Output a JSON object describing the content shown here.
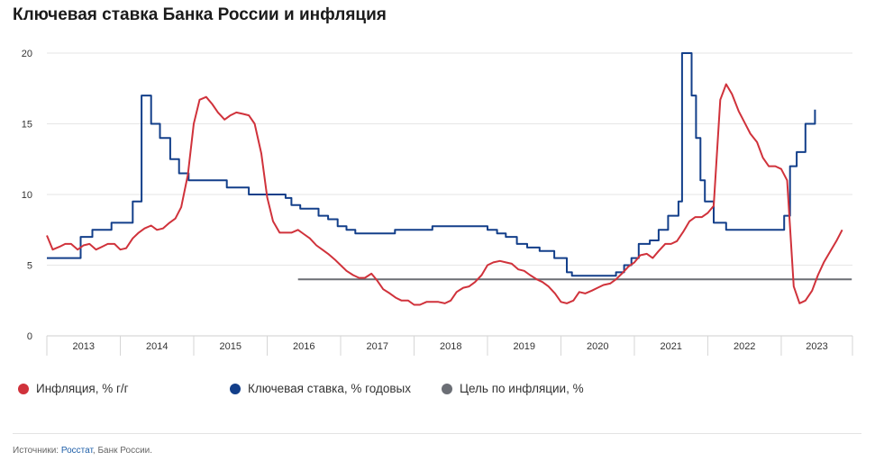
{
  "title": "Ключевая ставка Банка России и инфляция",
  "chart_data": {
    "type": "line",
    "title": "Ключевая ставка Банка России и инфляция",
    "xlabel": "",
    "ylabel": "",
    "xlim": [
      2013.0,
      2023.97
    ],
    "ylim": [
      0,
      20
    ],
    "y_ticks": [
      0,
      5,
      10,
      15,
      20
    ],
    "x_tick_labels": [
      "2013",
      "2014",
      "2015",
      "2016",
      "2017",
      "2018",
      "2019",
      "2020",
      "2021",
      "2022",
      "2023"
    ],
    "grid": true,
    "legend_position": "bottom",
    "series": [
      {
        "name": "Инфляция, % г/г",
        "color": "#d0323b",
        "style": "line",
        "points": [
          [
            2013.0,
            7.1
          ],
          [
            2013.08,
            6.1
          ],
          [
            2013.17,
            6.3
          ],
          [
            2013.25,
            6.5
          ],
          [
            2013.33,
            6.5
          ],
          [
            2013.42,
            6.1
          ],
          [
            2013.5,
            6.4
          ],
          [
            2013.58,
            6.5
          ],
          [
            2013.67,
            6.1
          ],
          [
            2013.75,
            6.3
          ],
          [
            2013.83,
            6.5
          ],
          [
            2013.92,
            6.5
          ],
          [
            2014.0,
            6.1
          ],
          [
            2014.08,
            6.2
          ],
          [
            2014.17,
            6.9
          ],
          [
            2014.25,
            7.3
          ],
          [
            2014.33,
            7.6
          ],
          [
            2014.42,
            7.8
          ],
          [
            2014.5,
            7.5
          ],
          [
            2014.58,
            7.6
          ],
          [
            2014.67,
            8.0
          ],
          [
            2014.75,
            8.3
          ],
          [
            2014.83,
            9.1
          ],
          [
            2014.92,
            11.4
          ],
          [
            2015.0,
            15.0
          ],
          [
            2015.08,
            16.7
          ],
          [
            2015.17,
            16.9
          ],
          [
            2015.25,
            16.4
          ],
          [
            2015.33,
            15.8
          ],
          [
            2015.42,
            15.3
          ],
          [
            2015.5,
            15.6
          ],
          [
            2015.58,
            15.8
          ],
          [
            2015.67,
            15.7
          ],
          [
            2015.75,
            15.6
          ],
          [
            2015.83,
            15.0
          ],
          [
            2015.92,
            12.9
          ],
          [
            2016.0,
            9.8
          ],
          [
            2016.08,
            8.1
          ],
          [
            2016.17,
            7.3
          ],
          [
            2016.25,
            7.3
          ],
          [
            2016.33,
            7.3
          ],
          [
            2016.42,
            7.5
          ],
          [
            2016.5,
            7.2
          ],
          [
            2016.58,
            6.9
          ],
          [
            2016.67,
            6.4
          ],
          [
            2016.75,
            6.1
          ],
          [
            2016.83,
            5.8
          ],
          [
            2016.92,
            5.4
          ],
          [
            2017.0,
            5.0
          ],
          [
            2017.08,
            4.6
          ],
          [
            2017.17,
            4.3
          ],
          [
            2017.25,
            4.1
          ],
          [
            2017.33,
            4.1
          ],
          [
            2017.42,
            4.4
          ],
          [
            2017.5,
            3.9
          ],
          [
            2017.58,
            3.3
          ],
          [
            2017.67,
            3.0
          ],
          [
            2017.75,
            2.7
          ],
          [
            2017.83,
            2.5
          ],
          [
            2017.92,
            2.5
          ],
          [
            2018.0,
            2.2
          ],
          [
            2018.08,
            2.2
          ],
          [
            2018.17,
            2.4
          ],
          [
            2018.25,
            2.4
          ],
          [
            2018.33,
            2.4
          ],
          [
            2018.42,
            2.3
          ],
          [
            2018.5,
            2.5
          ],
          [
            2018.58,
            3.1
          ],
          [
            2018.67,
            3.4
          ],
          [
            2018.75,
            3.5
          ],
          [
            2018.83,
            3.8
          ],
          [
            2018.92,
            4.3
          ],
          [
            2019.0,
            5.0
          ],
          [
            2019.08,
            5.2
          ],
          [
            2019.17,
            5.3
          ],
          [
            2019.25,
            5.2
          ],
          [
            2019.33,
            5.1
          ],
          [
            2019.42,
            4.7
          ],
          [
            2019.5,
            4.6
          ],
          [
            2019.58,
            4.3
          ],
          [
            2019.67,
            4.0
          ],
          [
            2019.75,
            3.8
          ],
          [
            2019.83,
            3.5
          ],
          [
            2019.92,
            3.0
          ],
          [
            2020.0,
            2.4
          ],
          [
            2020.08,
            2.3
          ],
          [
            2020.17,
            2.5
          ],
          [
            2020.25,
            3.1
          ],
          [
            2020.33,
            3.0
          ],
          [
            2020.42,
            3.2
          ],
          [
            2020.5,
            3.4
          ],
          [
            2020.58,
            3.6
          ],
          [
            2020.67,
            3.7
          ],
          [
            2020.75,
            4.0
          ],
          [
            2020.83,
            4.4
          ],
          [
            2020.92,
            4.9
          ],
          [
            2021.0,
            5.2
          ],
          [
            2021.08,
            5.7
          ],
          [
            2021.17,
            5.8
          ],
          [
            2021.25,
            5.5
          ],
          [
            2021.33,
            6.0
          ],
          [
            2021.42,
            6.5
          ],
          [
            2021.5,
            6.5
          ],
          [
            2021.58,
            6.7
          ],
          [
            2021.67,
            7.4
          ],
          [
            2021.75,
            8.1
          ],
          [
            2021.83,
            8.4
          ],
          [
            2021.92,
            8.4
          ],
          [
            2022.0,
            8.7
          ],
          [
            2022.08,
            9.2
          ],
          [
            2022.17,
            16.7
          ],
          [
            2022.25,
            17.8
          ],
          [
            2022.33,
            17.1
          ],
          [
            2022.42,
            15.9
          ],
          [
            2022.5,
            15.1
          ],
          [
            2022.58,
            14.3
          ],
          [
            2022.67,
            13.7
          ],
          [
            2022.75,
            12.6
          ],
          [
            2022.83,
            12.0
          ],
          [
            2022.92,
            12.0
          ],
          [
            2023.0,
            11.8
          ],
          [
            2023.08,
            11.0
          ],
          [
            2023.17,
            3.5
          ],
          [
            2023.25,
            2.3
          ],
          [
            2023.33,
            2.5
          ],
          [
            2023.42,
            3.2
          ],
          [
            2023.5,
            4.3
          ],
          [
            2023.58,
            5.2
          ],
          [
            2023.67,
            6.0
          ],
          [
            2023.75,
            6.7
          ],
          [
            2023.83,
            7.5
          ]
        ]
      },
      {
        "name": "Ключевая ставка, % годовых",
        "color": "#133f8a",
        "style": "step",
        "points": [
          [
            2013.0,
            5.5
          ],
          [
            2013.46,
            5.5
          ],
          [
            2013.46,
            7.0
          ],
          [
            2013.62,
            7.0
          ],
          [
            2013.62,
            7.5
          ],
          [
            2013.88,
            7.5
          ],
          [
            2013.88,
            8.0
          ],
          [
            2014.17,
            8.0
          ],
          [
            2014.17,
            9.5
          ],
          [
            2014.29,
            9.5
          ],
          [
            2014.29,
            17.0
          ],
          [
            2014.42,
            17.0
          ],
          [
            2014.42,
            15.0
          ],
          [
            2014.54,
            15.0
          ],
          [
            2014.54,
            14.0
          ],
          [
            2014.68,
            14.0
          ],
          [
            2014.68,
            12.5
          ],
          [
            2014.8,
            12.5
          ],
          [
            2014.8,
            11.5
          ],
          [
            2014.93,
            11.5
          ],
          [
            2014.93,
            11.0
          ],
          [
            2015.45,
            11.0
          ],
          [
            2015.45,
            10.5
          ],
          [
            2015.75,
            10.5
          ],
          [
            2015.75,
            10.0
          ],
          [
            2016.25,
            10.0
          ],
          [
            2016.25,
            9.75
          ],
          [
            2016.33,
            9.75
          ],
          [
            2016.33,
            9.25
          ],
          [
            2016.45,
            9.25
          ],
          [
            2016.45,
            9.0
          ],
          [
            2016.7,
            9.0
          ],
          [
            2016.7,
            8.5
          ],
          [
            2016.83,
            8.5
          ],
          [
            2016.83,
            8.25
          ],
          [
            2016.96,
            8.25
          ],
          [
            2016.96,
            7.75
          ],
          [
            2017.08,
            7.75
          ],
          [
            2017.08,
            7.5
          ],
          [
            2017.2,
            7.5
          ],
          [
            2017.2,
            7.25
          ],
          [
            2017.74,
            7.25
          ],
          [
            2017.74,
            7.5
          ],
          [
            2018.25,
            7.5
          ],
          [
            2018.25,
            7.75
          ],
          [
            2019.0,
            7.75
          ],
          [
            2019.0,
            7.5
          ],
          [
            2019.13,
            7.5
          ],
          [
            2019.13,
            7.25
          ],
          [
            2019.25,
            7.25
          ],
          [
            2019.25,
            7.0
          ],
          [
            2019.4,
            7.0
          ],
          [
            2019.4,
            6.5
          ],
          [
            2019.54,
            6.5
          ],
          [
            2019.54,
            6.25
          ],
          [
            2019.71,
            6.25
          ],
          [
            2019.71,
            6.0
          ],
          [
            2019.91,
            6.0
          ],
          [
            2019.91,
            5.5
          ],
          [
            2020.08,
            5.5
          ],
          [
            2020.08,
            4.5
          ],
          [
            2020.15,
            4.5
          ],
          [
            2020.15,
            4.25
          ],
          [
            2020.75,
            4.25
          ],
          [
            2020.75,
            4.5
          ],
          [
            2020.86,
            4.5
          ],
          [
            2020.86,
            5.0
          ],
          [
            2020.96,
            5.0
          ],
          [
            2020.96,
            5.5
          ],
          [
            2021.06,
            5.5
          ],
          [
            2021.06,
            6.5
          ],
          [
            2021.21,
            6.5
          ],
          [
            2021.21,
            6.75
          ],
          [
            2021.33,
            6.75
          ],
          [
            2021.33,
            7.5
          ],
          [
            2021.46,
            7.5
          ],
          [
            2021.46,
            8.5
          ],
          [
            2021.6,
            8.5
          ],
          [
            2021.6,
            9.5
          ],
          [
            2021.65,
            9.5
          ],
          [
            2021.65,
            20.0
          ],
          [
            2021.78,
            20.0
          ],
          [
            2021.78,
            17.0
          ],
          [
            2021.84,
            17.0
          ],
          [
            2021.84,
            14.0
          ],
          [
            2021.9,
            14.0
          ],
          [
            2021.9,
            11.0
          ],
          [
            2021.96,
            11.0
          ],
          [
            2021.96,
            9.5
          ],
          [
            2022.08,
            9.5
          ],
          [
            2022.08,
            8.0
          ],
          [
            2022.25,
            8.0
          ],
          [
            2022.25,
            7.5
          ],
          [
            2023.04,
            7.5
          ],
          [
            2023.04,
            8.5
          ],
          [
            2023.12,
            8.5
          ],
          [
            2023.12,
            12.0
          ],
          [
            2023.21,
            12.0
          ],
          [
            2023.21,
            13.0
          ],
          [
            2023.33,
            13.0
          ],
          [
            2023.33,
            15.0
          ],
          [
            2023.46,
            15.0
          ],
          [
            2023.46,
            16.0
          ]
        ]
      },
      {
        "name": "Цель по инфляции, %",
        "color": "#6b6e75",
        "style": "line",
        "points": [
          [
            2016.42,
            4.0
          ],
          [
            2023.96,
            4.0
          ]
        ]
      }
    ]
  },
  "legend": [
    {
      "label": "Инфляция, % г/г",
      "color": "#d0323b"
    },
    {
      "label": "Ключевая ставка, % годовых",
      "color": "#133f8a"
    },
    {
      "label": "Цель по инфляции, %",
      "color": "#6b6e75"
    }
  ],
  "source": {
    "prefix": "Источники: ",
    "link_text": "Росстат",
    "suffix": ", Банк России."
  }
}
